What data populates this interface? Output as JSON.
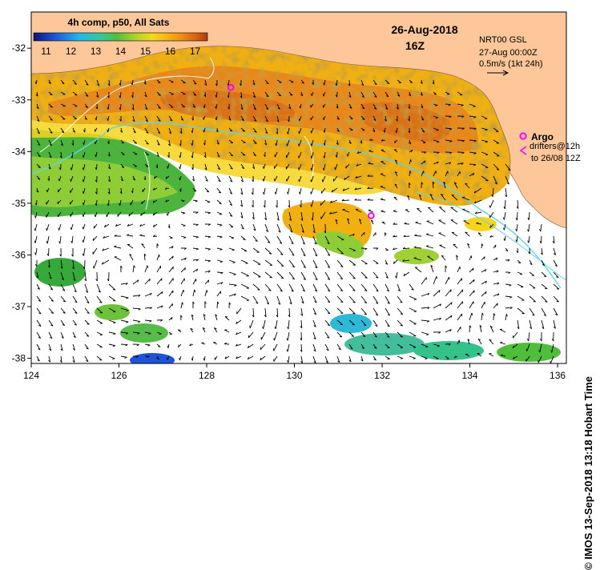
{
  "chart_data": {
    "type": "heatmap",
    "title": "26-Aug-2018",
    "subtitle": "16Z",
    "colorbar": {
      "label": "4h comp, p50, All Sats",
      "ticks": [
        "11",
        "12",
        "13",
        "14",
        "15",
        "16",
        "17"
      ],
      "range": [
        10.5,
        17.5
      ]
    },
    "x_ticks": [
      124,
      126,
      128,
      130,
      132,
      134,
      136
    ],
    "y_ticks": [
      -32,
      -33,
      -34,
      -35,
      -36,
      -37,
      -38
    ],
    "xlim": [
      124,
      136.2
    ],
    "ylim": [
      -38.1,
      -31.3
    ],
    "current_info": {
      "line1": "NRT00 GSL",
      "line2": "27-Aug 00:00Z",
      "line3": "0.5m/s (1kt 24h)"
    },
    "argo_legend": "Argo",
    "drifters_legend": "drifters@12h",
    "drifters_legend_2": "to 26/08 12Z",
    "argo_floats": [
      {
        "lon": 131.75,
        "lat": -35.24
      },
      {
        "lon": 128.55,
        "lat": -32.76
      }
    ]
  },
  "credit": "© IMOS 13-Sep-2018 13:18 Hobart Time",
  "colors": {
    "land": "#fdc79a",
    "no_data": "#ffffff",
    "argo": "#ff00ff",
    "contour": "#5fd5e8"
  }
}
